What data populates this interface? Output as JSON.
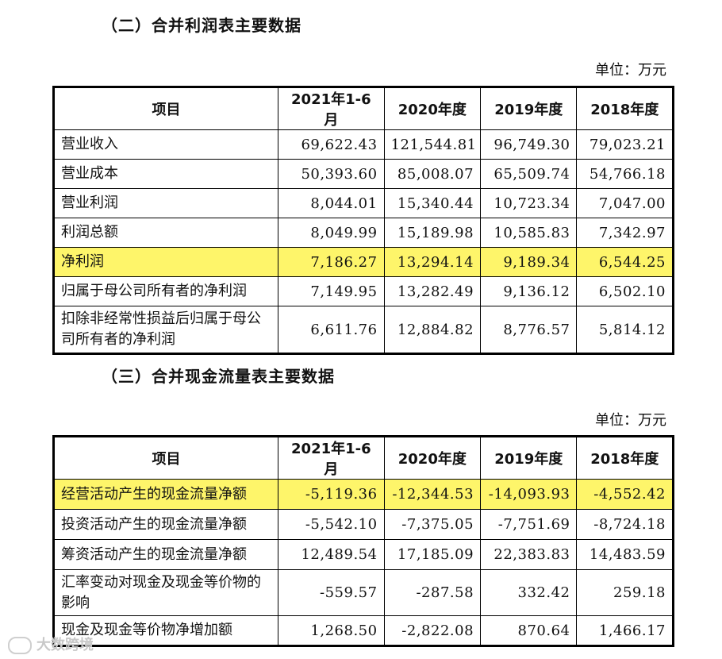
{
  "income_statement": {
    "title": "（二）合并利润表主要数据",
    "unit": "单位：万元",
    "headers": [
      "项目",
      "2021年1-6月",
      "2020年度",
      "2019年度",
      "2018年度"
    ],
    "rows": [
      {
        "label": "营业收入",
        "values": [
          "69,622.43",
          "121,544.81",
          "96,749.30",
          "79,023.21"
        ],
        "highlight": false
      },
      {
        "label": "营业成本",
        "values": [
          "50,393.60",
          "85,008.07",
          "65,509.74",
          "54,766.18"
        ],
        "highlight": false
      },
      {
        "label": "营业利润",
        "values": [
          "8,044.01",
          "15,340.44",
          "10,723.34",
          "7,047.00"
        ],
        "highlight": false
      },
      {
        "label": "利润总额",
        "values": [
          "8,049.99",
          "15,189.98",
          "10,585.83",
          "7,342.97"
        ],
        "highlight": false
      },
      {
        "label": "净利润",
        "values": [
          "7,186.27",
          "13,294.14",
          "9,189.34",
          "6,544.25"
        ],
        "highlight": true
      },
      {
        "label": "归属于母公司所有者的净利润",
        "values": [
          "7,149.95",
          "13,282.49",
          "9,136.12",
          "6,502.10"
        ],
        "highlight": false
      },
      {
        "label": "扣除非经常性损益后归属于母公司所有者的净利润",
        "values": [
          "6,611.76",
          "12,884.82",
          "8,776.57",
          "5,814.12"
        ],
        "highlight": false
      }
    ]
  },
  "cash_flow": {
    "title": "（三）合并现金流量表主要数据",
    "unit": "单位：万元",
    "headers": [
      "项目",
      "2021年1-6月",
      "2020年度",
      "2019年度",
      "2018年度"
    ],
    "rows": [
      {
        "label": "经营活动产生的现金流量净额",
        "values": [
          "-5,119.36",
          "-12,344.53",
          "-14,093.93",
          "-4,552.42"
        ],
        "highlight": true
      },
      {
        "label": "投资活动产生的现金流量净额",
        "values": [
          "-5,542.10",
          "-7,375.05",
          "-7,751.69",
          "-8,724.18"
        ],
        "highlight": false
      },
      {
        "label": "筹资活动产生的现金流量净额",
        "values": [
          "12,489.54",
          "17,185.09",
          "22,383.83",
          "14,483.59"
        ],
        "highlight": false
      },
      {
        "label": "汇率变动对现金及现金等价物的影响",
        "values": [
          "-559.57",
          "-287.58",
          "332.42",
          "259.18"
        ],
        "highlight": false
      },
      {
        "label": "现金及现金等价物净增加额",
        "values": [
          "1,268.50",
          "-2,822.08",
          "870.64",
          "1,466.17"
        ],
        "highlight": false
      }
    ]
  },
  "watermark": "大数跨境",
  "colors": {
    "highlight": "#fef56a",
    "border": "#000000"
  }
}
